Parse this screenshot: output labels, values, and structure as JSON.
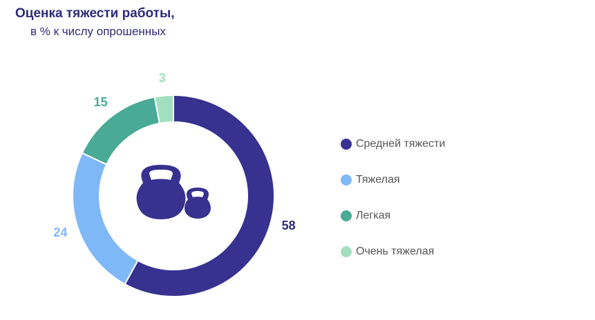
{
  "title": "Оценка тяжести работы,",
  "subtitle": "в % к числу опрошенных",
  "icon": "kettlebells-icon",
  "chart_data": {
    "type": "pie",
    "variant": "donut",
    "legend_position": "right",
    "slices": [
      {
        "label": "Средней тяжести",
        "value": 58,
        "color": "#37328f",
        "value_label_color": "#2e2a7a"
      },
      {
        "label": "Тяжелая",
        "value": 24,
        "color": "#7fb8f7",
        "value_label_color": "#7fb8f7"
      },
      {
        "label": "Легкая",
        "value": 15,
        "color": "#49aa95",
        "value_label_color": "#49aa95"
      },
      {
        "label": "Очень тяжелая",
        "value": 3,
        "color": "#a2dfc0",
        "value_label_color": "#a2dfc0"
      }
    ]
  }
}
